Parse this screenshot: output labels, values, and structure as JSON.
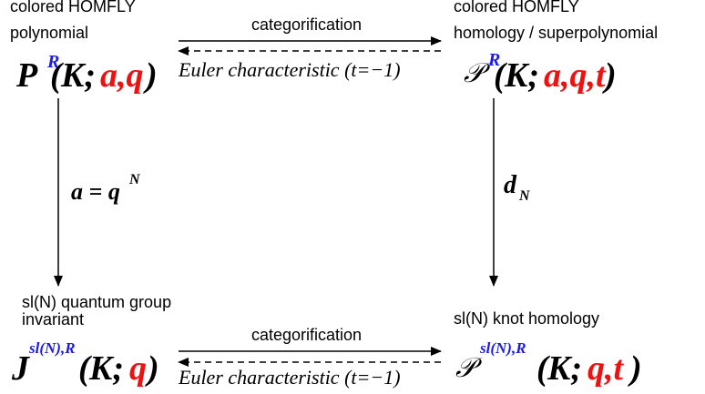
{
  "colors": {
    "red": "#ee1111",
    "blue": "#1a1aee",
    "black": "#000000"
  },
  "top_left": {
    "caption_line1": "colored HOMFLY",
    "caption_line2": "polynomial",
    "symbol": "P",
    "superscript": "R",
    "open_paren": "(",
    "knot": "K;",
    "vars": "a,q",
    "close_paren": ")"
  },
  "top_right": {
    "caption_line1": "colored HOMFLY",
    "caption_line2": "homology / superpolynomial",
    "symbol": "𝒫",
    "superscript": "R",
    "open_paren": "(",
    "knot": "K;",
    "vars": "a,q,t",
    "close_paren": ")"
  },
  "bottom_left": {
    "caption_line1": "sl(N) quantum group",
    "caption_line2": "invariant",
    "symbol": "J",
    "superscript": "sl(N),R",
    "open_paren": "(",
    "knot": "K;",
    "vars": "q",
    "close_paren": ")"
  },
  "bottom_right": {
    "caption_line1": "sl(N) knot homology",
    "symbol": "𝒫",
    "superscript": "sl(N),R",
    "open_paren": "(",
    "knot": "K;",
    "vars": "q,t",
    "close_paren": ")"
  },
  "top_arrows": {
    "forward_label": "categorification",
    "backward_label": "Euler characteristic (t=−1)"
  },
  "bottom_arrows": {
    "forward_label": "categorification",
    "backward_label": "Euler characteristic (t=−1)"
  },
  "left_arrow": {
    "label_main": "a = q",
    "label_exp": "N"
  },
  "right_arrow": {
    "label_main": "d",
    "label_sub": "N"
  }
}
